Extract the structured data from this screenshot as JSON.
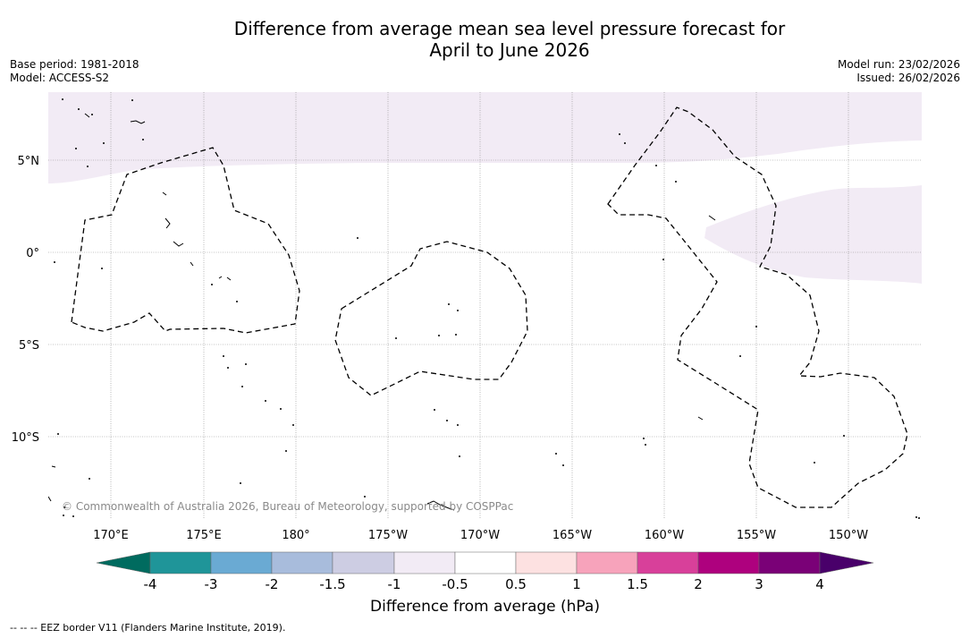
{
  "title_line1": "Difference from average mean sea level pressure forecast for",
  "title_line2": "April to June 2026",
  "meta": {
    "base_period": "Base period: 1981-2018",
    "model": "Model: ACCESS-S2",
    "model_run": "Model run: 23/02/2026",
    "issued": "Issued: 26/02/2026"
  },
  "map": {
    "lat_labels": [
      "5°N",
      "0°",
      "5°S",
      "10°S"
    ],
    "lon_labels": [
      "170°E",
      "175°E",
      "180°",
      "175°W",
      "170°W",
      "165°W",
      "160°W",
      "155°W",
      "150°W"
    ],
    "copyright": "© Commonwealth of Australia 2026, Bureau of Meteorology, supported by COSPPac",
    "shading_category": "-1 to -0.5"
  },
  "colorbar": {
    "ticks": [
      "-4",
      "-3",
      "-2",
      "-1.5",
      "-1",
      "-0.5",
      "0.5",
      "1",
      "1.5",
      "2",
      "3",
      "4"
    ],
    "colors": [
      "#006b5f",
      "#1f9599",
      "#6aaad3",
      "#a8bcdc",
      "#cdcde3",
      "#f2ebf5",
      "#ffffff",
      "#fde1e1",
      "#f7a3bb",
      "#d8409a",
      "#ae017e",
      "#7a0177",
      "#49006a"
    ],
    "label": "Difference from average (hPa)"
  },
  "footnote": "--  --  -- EEZ border V11 (Flanders Marine Institute, 2019)."
}
